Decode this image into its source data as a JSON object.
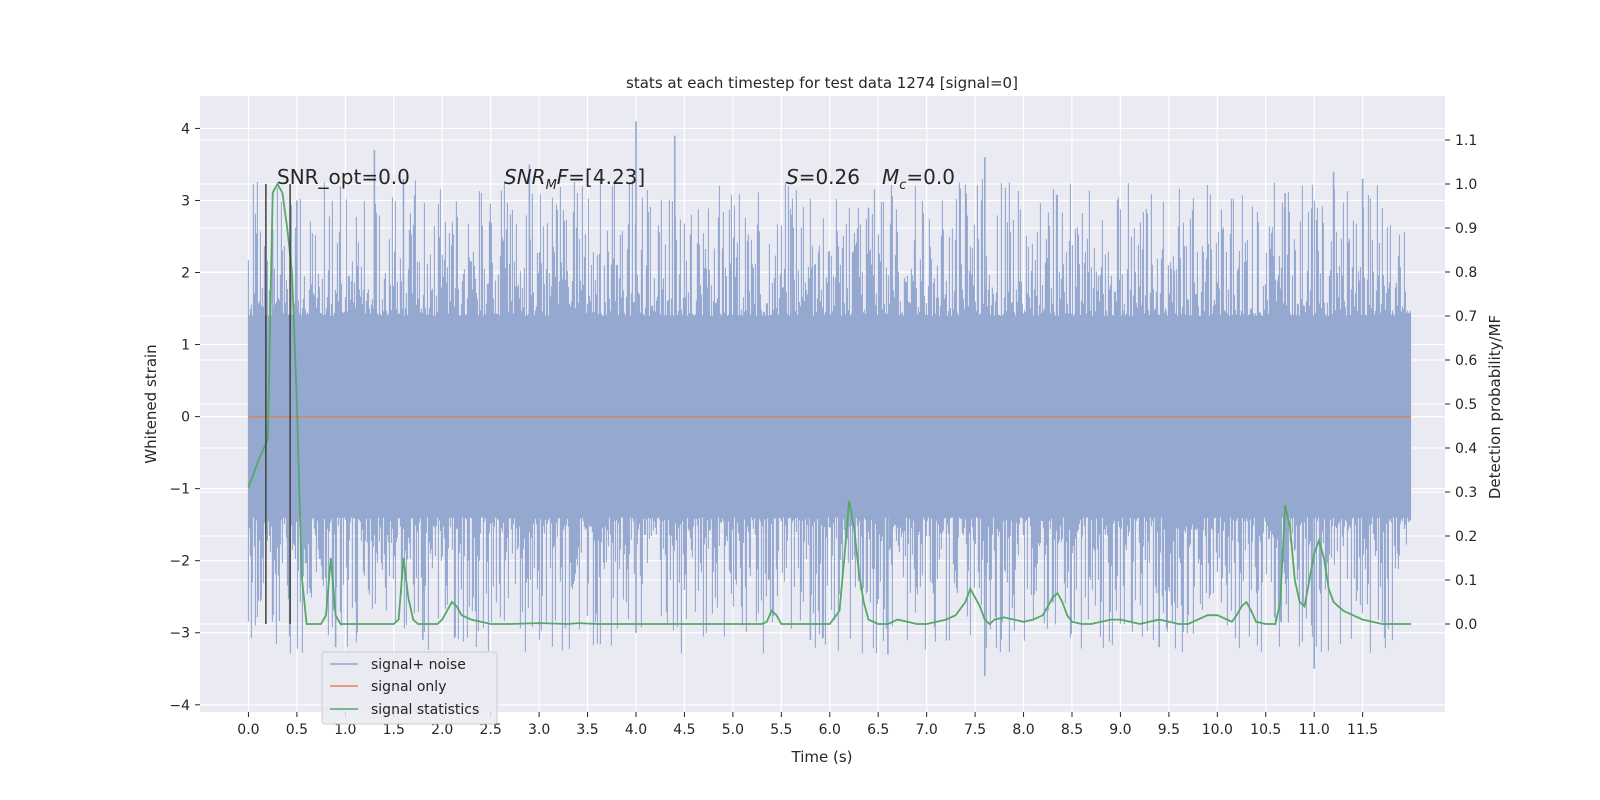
{
  "chart_data": {
    "type": "line",
    "title": "stats at each timestep for test data 1274 [signal=0]",
    "xlabel": "Time (s)",
    "ylabel": "Whitened strain",
    "ylabel_right": "Detection probability/MF",
    "xlim": [
      -0.5,
      12.35
    ],
    "ylim": [
      -4.1,
      4.45
    ],
    "ylim_right": [
      -0.2,
      1.2
    ],
    "x_ticks": [
      0.0,
      0.5,
      1.0,
      1.5,
      2.0,
      2.5,
      3.0,
      3.5,
      4.0,
      4.5,
      5.0,
      5.5,
      6.0,
      6.5,
      7.0,
      7.5,
      8.0,
      8.5,
      9.0,
      9.5,
      10.0,
      10.5,
      11.0,
      11.5
    ],
    "x_tick_labels": [
      "0.0",
      "0.5",
      "1.0",
      "1.5",
      "2.0",
      "2.5",
      "3.0",
      "3.5",
      "4.0",
      "4.5",
      "5.0",
      "5.5",
      "6.0",
      "6.5",
      "7.0",
      "7.5",
      "8.0",
      "8.5",
      "9.0",
      "9.5",
      "10.0",
      "10.5",
      "11.0",
      "11.5"
    ],
    "y_ticks": [
      -4,
      -3,
      -2,
      -1,
      0,
      1,
      2,
      3,
      4
    ],
    "y_tick_labels": [
      "−4",
      "−3",
      "−2",
      "−1",
      "0",
      "1",
      "2",
      "3",
      "4"
    ],
    "y_right_ticks": [
      0.0,
      0.1,
      0.2,
      0.3,
      0.4,
      0.5,
      0.6,
      0.7,
      0.8,
      0.9,
      1.0,
      1.1
    ],
    "y_right_tick_labels": [
      "0.0",
      "0.1",
      "0.2",
      "0.3",
      "0.4",
      "0.5",
      "0.6",
      "0.7",
      "0.8",
      "0.9",
      "1.0",
      "1.1"
    ],
    "grid": true,
    "legend_position": "lower-left",
    "series": [
      {
        "name": "signal+ noise",
        "color": "#95a8d0",
        "description_range": [
          0.0,
          12.0
        ],
        "core_envelope": [
          -1.4,
          1.4
        ],
        "sample_peaks": [
          {
            "x": 0.25,
            "y": 2.6
          },
          {
            "x": 0.5,
            "y": 3.0
          },
          {
            "x": 1.3,
            "y": 3.7
          },
          {
            "x": 1.6,
            "y": 3.3
          },
          {
            "x": 2.9,
            "y": 3.5
          },
          {
            "x": 4.0,
            "y": 4.1
          },
          {
            "x": 4.4,
            "y": 3.9
          },
          {
            "x": 5.6,
            "y": 2.8
          },
          {
            "x": 6.4,
            "y": 2.9
          },
          {
            "x": 7.6,
            "y": 3.6
          },
          {
            "x": 10.7,
            "y": 3.1
          },
          {
            "x": 11.2,
            "y": 3.4
          },
          {
            "x": 11.5,
            "y": 3.3
          },
          {
            "x": 7.6,
            "y": -3.6
          },
          {
            "x": 6.6,
            "y": -3.3
          },
          {
            "x": 11.0,
            "y": -3.5
          },
          {
            "x": 0.9,
            "y": -3.2
          },
          {
            "x": 1.8,
            "y": -3.1
          },
          {
            "x": 4.0,
            "y": -3.0
          },
          {
            "x": 5.8,
            "y": -3.1
          },
          {
            "x": 9.4,
            "y": -3.2
          }
        ]
      },
      {
        "name": "signal only",
        "color": "#dd8452",
        "x": [
          0.0,
          12.0
        ],
        "y": [
          0.0,
          0.0
        ]
      },
      {
        "name": "signal statistics",
        "color": "#55a868",
        "axis": "right",
        "x": [
          0.0,
          0.1,
          0.2,
          0.25,
          0.3,
          0.35,
          0.4,
          0.45,
          0.5,
          0.55,
          0.6,
          0.65,
          0.7,
          0.75,
          0.8,
          0.85,
          0.9,
          0.95,
          1.0,
          1.1,
          1.2,
          1.3,
          1.4,
          1.5,
          1.55,
          1.6,
          1.65,
          1.7,
          1.75,
          1.8,
          1.85,
          1.9,
          1.95,
          2.0,
          2.1,
          2.15,
          2.2,
          2.3,
          2.4,
          2.5,
          2.7,
          3.0,
          3.3,
          3.4,
          3.6,
          4.0,
          5.0,
          5.3,
          5.35,
          5.4,
          5.45,
          5.5,
          5.55,
          5.6,
          5.7,
          5.8,
          5.9,
          6.0,
          6.1,
          6.15,
          6.2,
          6.25,
          6.3,
          6.35,
          6.4,
          6.5,
          6.6,
          6.7,
          6.8,
          6.9,
          7.0,
          7.2,
          7.3,
          7.4,
          7.45,
          7.5,
          7.55,
          7.6,
          7.65,
          7.7,
          7.8,
          7.9,
          8.0,
          8.1,
          8.2,
          8.25,
          8.3,
          8.35,
          8.4,
          8.45,
          8.5,
          8.6,
          8.7,
          8.8,
          8.9,
          9.0,
          9.1,
          9.2,
          9.3,
          9.4,
          9.5,
          9.6,
          9.7,
          9.8,
          9.9,
          10.0,
          10.1,
          10.15,
          10.2,
          10.25,
          10.3,
          10.35,
          10.4,
          10.5,
          10.55,
          10.6,
          10.65,
          10.7,
          10.75,
          10.8,
          10.85,
          10.9,
          10.95,
          11.0,
          11.05,
          11.1,
          11.15,
          11.2,
          11.25,
          11.3,
          11.4,
          11.5,
          11.6,
          11.7,
          11.8,
          11.9,
          12.0
        ],
        "y": [
          0.31,
          0.37,
          0.42,
          0.98,
          1.0,
          0.98,
          0.9,
          0.8,
          0.5,
          0.11,
          0.0,
          0.0,
          0.0,
          0.0,
          0.02,
          0.15,
          0.02,
          0.0,
          0.0,
          0.0,
          0.0,
          0.0,
          0.0,
          0.0,
          0.01,
          0.15,
          0.06,
          0.01,
          0.0,
          0.0,
          0.0,
          0.0,
          0.0,
          0.01,
          0.05,
          0.04,
          0.02,
          0.01,
          0.005,
          0.0,
          0.0,
          0.002,
          0.0,
          0.002,
          0.0,
          0.0,
          0.0,
          0.0,
          0.005,
          0.03,
          0.02,
          0.0,
          0.0,
          0.0,
          0.0,
          0.0,
          0.0,
          0.0,
          0.03,
          0.15,
          0.28,
          0.22,
          0.12,
          0.05,
          0.01,
          0.0,
          0.0,
          0.01,
          0.005,
          0.0,
          0.0,
          0.01,
          0.02,
          0.05,
          0.08,
          0.06,
          0.04,
          0.01,
          0.0,
          0.01,
          0.015,
          0.01,
          0.005,
          0.01,
          0.02,
          0.04,
          0.06,
          0.07,
          0.05,
          0.02,
          0.005,
          0.0,
          0.0,
          0.005,
          0.01,
          0.01,
          0.005,
          0.0,
          0.005,
          0.01,
          0.005,
          0.0,
          0.0,
          0.01,
          0.02,
          0.02,
          0.01,
          0.005,
          0.02,
          0.04,
          0.05,
          0.03,
          0.005,
          0.0,
          0.0,
          0.0,
          0.05,
          0.27,
          0.22,
          0.1,
          0.05,
          0.04,
          0.1,
          0.16,
          0.19,
          0.15,
          0.08,
          0.05,
          0.04,
          0.03,
          0.02,
          0.01,
          0.005,
          0.0,
          0.0,
          0.0,
          0.0
        ]
      }
    ],
    "vertical_lines": [
      {
        "x": 0.18,
        "color": "#404040",
        "y0_right": 0.0,
        "y1_right": 1.0
      },
      {
        "x": 0.43,
        "color": "#404040",
        "y0_right": 0.0,
        "y1_right": 1.0
      }
    ]
  },
  "annotations": {
    "snr_opt": "SNR_opt=0.0",
    "snr_mf_base": "SNR",
    "snr_mf_sub": "M",
    "snr_mf_tail": "F",
    "snr_mf_value": "=[4.23]",
    "s_label": "S",
    "s_value": "=0.26",
    "mc_label": "M",
    "mc_sub": "c",
    "mc_value": "=0.0"
  },
  "legend": {
    "items": [
      "signal+ noise",
      "signal only",
      "signal statistics"
    ]
  }
}
